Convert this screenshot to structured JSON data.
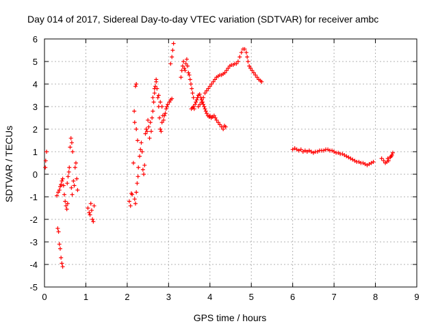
{
  "chart_data": {
    "type": "scatter",
    "title": "Day 014 of 2017, Sidereal Day-to-day VTEC variation (SDTVAR) for receiver ambc",
    "xlabel": "GPS time / hours",
    "ylabel": "SDTVAR / TECUs",
    "xlim": [
      0,
      9
    ],
    "ylim": [
      -5,
      6
    ],
    "xticks": [
      0,
      1,
      2,
      3,
      4,
      5,
      6,
      7,
      8,
      9
    ],
    "yticks": [
      -5,
      -4,
      -3,
      -2,
      -1,
      0,
      1,
      2,
      3,
      4,
      5,
      6
    ],
    "grid": true,
    "marker": "+",
    "color": "#ff0000",
    "series": [
      {
        "name": "SDTVAR",
        "points": [
          [
            0.02,
            0.3
          ],
          [
            0.03,
            0.6
          ],
          [
            0.05,
            1.0
          ],
          [
            0.3,
            -0.95
          ],
          [
            0.33,
            -0.8
          ],
          [
            0.36,
            -0.7
          ],
          [
            0.38,
            -0.55
          ],
          [
            0.4,
            -0.45
          ],
          [
            0.42,
            -0.3
          ],
          [
            0.44,
            -0.2
          ],
          [
            0.46,
            -0.5
          ],
          [
            0.48,
            -0.9
          ],
          [
            0.32,
            -2.4
          ],
          [
            0.34,
            -2.55
          ],
          [
            0.36,
            -3.1
          ],
          [
            0.38,
            -3.3
          ],
          [
            0.4,
            -3.7
          ],
          [
            0.42,
            -3.95
          ],
          [
            0.44,
            -4.1
          ],
          [
            0.5,
            -1.2
          ],
          [
            0.52,
            -1.4
          ],
          [
            0.54,
            -1.55
          ],
          [
            0.56,
            -1.3
          ],
          [
            0.55,
            -0.4
          ],
          [
            0.57,
            -0.1
          ],
          [
            0.59,
            0.1
          ],
          [
            0.6,
            0.3
          ],
          [
            0.62,
            1.2
          ],
          [
            0.64,
            1.6
          ],
          [
            0.66,
            1.4
          ],
          [
            0.68,
            1.0
          ],
          [
            0.7,
            -0.3
          ],
          [
            0.72,
            -0.5
          ],
          [
            0.74,
            0.3
          ],
          [
            0.76,
            0.5
          ],
          [
            0.78,
            -0.2
          ],
          [
            0.8,
            -0.7
          ],
          [
            0.65,
            -0.6
          ],
          [
            0.67,
            -0.9
          ],
          [
            1.05,
            -1.5
          ],
          [
            1.08,
            -1.7
          ],
          [
            1.1,
            -1.8
          ],
          [
            1.12,
            -1.3
          ],
          [
            1.14,
            -1.6
          ],
          [
            1.16,
            -2.0
          ],
          [
            1.18,
            -2.1
          ],
          [
            1.2,
            -1.4
          ],
          [
            2.05,
            -1.2
          ],
          [
            2.08,
            -1.4
          ],
          [
            2.1,
            -0.85
          ],
          [
            2.12,
            -0.9
          ],
          [
            2.15,
            0.5
          ],
          [
            2.18,
            -1.1
          ],
          [
            2.2,
            -1.3
          ],
          [
            2.22,
            -0.8
          ],
          [
            2.24,
            -0.4
          ],
          [
            2.26,
            -0.1
          ],
          [
            2.17,
            2.8
          ],
          [
            2.2,
            3.9
          ],
          [
            2.22,
            4.0
          ],
          [
            2.18,
            2.3
          ],
          [
            2.22,
            2.0
          ],
          [
            2.25,
            1.5
          ],
          [
            2.27,
            0.3
          ],
          [
            2.3,
            0.8
          ],
          [
            2.32,
            1.1
          ],
          [
            2.34,
            1.4
          ],
          [
            2.36,
            1.0
          ],
          [
            2.38,
            0.2
          ],
          [
            2.4,
            0.0
          ],
          [
            2.42,
            0.4
          ],
          [
            2.44,
            1.8
          ],
          [
            2.46,
            2.0
          ],
          [
            2.48,
            1.9
          ],
          [
            2.5,
            2.4
          ],
          [
            2.52,
            2.1
          ],
          [
            2.54,
            1.6
          ],
          [
            2.56,
            2.3
          ],
          [
            2.58,
            1.9
          ],
          [
            2.6,
            2.5
          ],
          [
            2.62,
            2.8
          ],
          [
            2.64,
            3.2
          ],
          [
            2.66,
            3.6
          ],
          [
            2.68,
            3.9
          ],
          [
            2.7,
            4.2
          ],
          [
            2.72,
            3.8
          ],
          [
            2.74,
            3.4
          ],
          [
            2.76,
            3.0
          ],
          [
            2.78,
            2.5
          ],
          [
            2.8,
            2.0
          ],
          [
            2.82,
            1.9
          ],
          [
            2.84,
            2.3
          ],
          [
            2.86,
            2.6
          ],
          [
            2.88,
            2.4
          ],
          [
            2.9,
            2.6
          ],
          [
            2.92,
            2.7
          ],
          [
            2.94,
            2.9
          ],
          [
            2.96,
            3.0
          ],
          [
            2.98,
            3.1
          ],
          [
            2.62,
            3.4
          ],
          [
            2.66,
            3.8
          ],
          [
            2.7,
            4.1
          ],
          [
            2.76,
            3.5
          ],
          [
            2.8,
            3.2
          ],
          [
            2.84,
            3.0
          ],
          [
            3.02,
            3.2
          ],
          [
            3.05,
            3.3
          ],
          [
            3.08,
            3.35
          ],
          [
            3.05,
            4.9
          ],
          [
            3.08,
            5.2
          ],
          [
            3.1,
            5.5
          ],
          [
            3.12,
            5.8
          ],
          [
            3.3,
            4.3
          ],
          [
            3.32,
            4.6
          ],
          [
            3.34,
            4.8
          ],
          [
            3.36,
            5.0
          ],
          [
            3.38,
            4.7
          ],
          [
            3.4,
            4.6
          ],
          [
            3.42,
            4.9
          ],
          [
            3.44,
            5.1
          ],
          [
            3.46,
            4.8
          ],
          [
            3.48,
            4.5
          ],
          [
            3.5,
            4.4
          ],
          [
            3.52,
            4.2
          ],
          [
            3.54,
            4.0
          ],
          [
            3.56,
            3.8
          ],
          [
            3.58,
            3.6
          ],
          [
            3.6,
            3.4
          ],
          [
            3.55,
            2.9
          ],
          [
            3.58,
            2.95
          ],
          [
            3.6,
            3.0
          ],
          [
            3.62,
            2.9
          ],
          [
            3.64,
            3.1
          ],
          [
            3.66,
            3.2
          ],
          [
            3.68,
            3.3
          ],
          [
            3.7,
            3.4
          ],
          [
            3.72,
            3.5
          ],
          [
            3.75,
            3.55
          ],
          [
            3.78,
            3.4
          ],
          [
            3.8,
            3.3
          ],
          [
            3.82,
            3.2
          ],
          [
            3.84,
            3.1
          ],
          [
            3.86,
            3.0
          ],
          [
            3.88,
            2.9
          ],
          [
            3.9,
            2.8
          ],
          [
            3.92,
            2.7
          ],
          [
            3.95,
            2.6
          ],
          [
            3.98,
            2.55
          ],
          [
            4.0,
            2.6
          ],
          [
            4.03,
            2.5
          ],
          [
            4.06,
            2.55
          ],
          [
            4.1,
            2.6
          ],
          [
            4.13,
            2.5
          ],
          [
            4.16,
            2.4
          ],
          [
            4.2,
            2.3
          ],
          [
            4.24,
            2.2
          ],
          [
            4.28,
            2.1
          ],
          [
            4.32,
            2.0
          ],
          [
            4.35,
            2.15
          ],
          [
            4.38,
            2.1
          ],
          [
            3.72,
            3.0
          ],
          [
            3.76,
            3.1
          ],
          [
            3.8,
            3.2
          ],
          [
            3.84,
            3.4
          ],
          [
            3.88,
            3.6
          ],
          [
            3.92,
            3.7
          ],
          [
            3.96,
            3.8
          ],
          [
            4.0,
            3.9
          ],
          [
            4.04,
            4.0
          ],
          [
            4.08,
            4.1
          ],
          [
            4.12,
            4.2
          ],
          [
            4.16,
            4.3
          ],
          [
            4.2,
            4.35
          ],
          [
            4.24,
            4.4
          ],
          [
            4.28,
            4.4
          ],
          [
            4.32,
            4.45
          ],
          [
            4.36,
            4.5
          ],
          [
            4.4,
            4.6
          ],
          [
            4.44,
            4.7
          ],
          [
            4.48,
            4.8
          ],
          [
            4.52,
            4.85
          ],
          [
            4.56,
            4.85
          ],
          [
            4.6,
            4.9
          ],
          [
            4.64,
            4.9
          ],
          [
            4.68,
            5.0
          ],
          [
            4.72,
            5.2
          ],
          [
            4.76,
            5.4
          ],
          [
            4.8,
            5.55
          ],
          [
            4.84,
            5.55
          ],
          [
            4.88,
            5.4
          ],
          [
            4.9,
            5.2
          ],
          [
            4.92,
            5.0
          ],
          [
            4.95,
            4.8
          ],
          [
            4.98,
            4.7
          ],
          [
            5.02,
            4.6
          ],
          [
            5.06,
            4.5
          ],
          [
            5.1,
            4.4
          ],
          [
            5.14,
            4.3
          ],
          [
            5.18,
            4.2
          ],
          [
            5.22,
            4.15
          ],
          [
            5.25,
            4.1
          ],
          [
            6.0,
            1.1
          ],
          [
            6.05,
            1.15
          ],
          [
            6.1,
            1.1
          ],
          [
            6.15,
            1.05
          ],
          [
            6.2,
            1.1
          ],
          [
            6.25,
            1.0
          ],
          [
            6.3,
            1.05
          ],
          [
            6.35,
            1.0
          ],
          [
            6.4,
            1.05
          ],
          [
            6.45,
            1.0
          ],
          [
            6.5,
            0.95
          ],
          [
            6.55,
            1.0
          ],
          [
            6.6,
            1.0
          ],
          [
            6.65,
            1.05
          ],
          [
            6.7,
            1.05
          ],
          [
            6.75,
            1.05
          ],
          [
            6.8,
            1.1
          ],
          [
            6.85,
            1.1
          ],
          [
            6.9,
            1.05
          ],
          [
            6.95,
            1.05
          ],
          [
            7.0,
            1.0
          ],
          [
            7.05,
            0.95
          ],
          [
            7.1,
            0.95
          ],
          [
            7.15,
            0.9
          ],
          [
            7.2,
            0.9
          ],
          [
            7.25,
            0.85
          ],
          [
            7.3,
            0.8
          ],
          [
            7.35,
            0.75
          ],
          [
            7.4,
            0.7
          ],
          [
            7.45,
            0.65
          ],
          [
            7.5,
            0.6
          ],
          [
            7.55,
            0.55
          ],
          [
            7.6,
            0.55
          ],
          [
            7.65,
            0.5
          ],
          [
            7.7,
            0.5
          ],
          [
            7.75,
            0.45
          ],
          [
            7.8,
            0.4
          ],
          [
            7.85,
            0.45
          ],
          [
            7.9,
            0.5
          ],
          [
            7.95,
            0.55
          ],
          [
            8.15,
            0.7
          ],
          [
            8.2,
            0.6
          ],
          [
            8.24,
            0.5
          ],
          [
            8.28,
            0.55
          ],
          [
            8.32,
            0.6
          ],
          [
            8.36,
            0.75
          ],
          [
            8.4,
            0.85
          ],
          [
            8.42,
            0.95
          ],
          [
            8.38,
            0.8
          ],
          [
            8.3,
            0.7
          ]
        ]
      }
    ]
  }
}
